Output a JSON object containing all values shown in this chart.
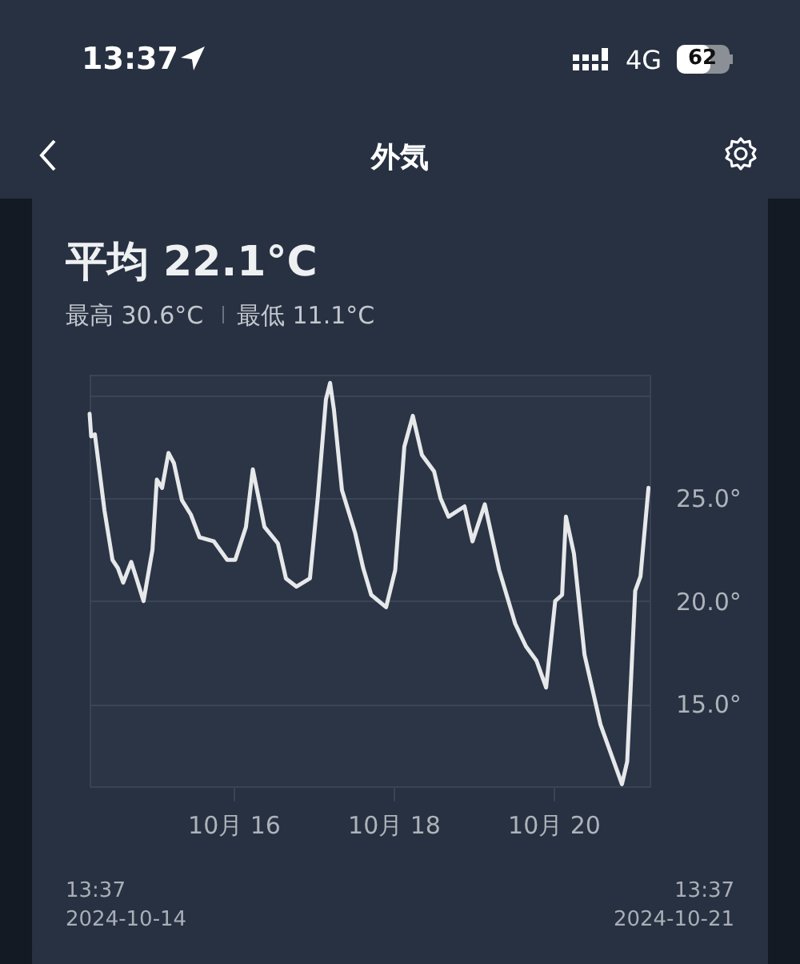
{
  "chart_data": {
    "type": "line",
    "title": "外気",
    "subtitle": "平均 22.1°C",
    "annotations": [
      "最高 30.6°C",
      "最低 11.1°C",
      "13:37",
      "2024-10-14",
      "13:37",
      "2024-10-21",
      "13:37",
      "4G",
      "62"
    ],
    "x": [
      "2024-10-14T13:37",
      "2024-10-14T14:06",
      "2024-10-14T15:12",
      "2024-10-14T18:05",
      "2024-10-14T20:29",
      "2024-10-14T22:07",
      "2024-10-14T23:42",
      "2024-10-15T02:06",
      "2024-10-15T03:41",
      "2024-10-15T05:48",
      "2024-10-15T08:29",
      "2024-10-15T09:47",
      "2024-10-15T11:22",
      "2024-10-15T13:17",
      "2024-10-15T14:55",
      "2024-10-15T17:19",
      "2024-10-15T20:00",
      "2024-10-15T22:36",
      "2024-10-16T02:55",
      "2024-10-16T06:54",
      "2024-10-16T09:18",
      "2024-10-16T12:31",
      "2024-10-16T14:35",
      "2024-10-16T18:05",
      "2024-10-16T22:07",
      "2024-10-17T00:31",
      "2024-10-17T03:41",
      "2024-10-17T07:43",
      "2024-10-17T10:07",
      "2024-10-17T12:31",
      "2024-10-17T13:46",
      "2024-10-17T14:55",
      "2024-10-17T17:19",
      "2024-10-17T21:18",
      "2024-10-17T23:42",
      "2024-10-18T02:06",
      "2024-10-18T06:34",
      "2024-10-18T09:18",
      "2024-10-18T12:02",
      "2024-10-18T14:35",
      "2024-10-18T17:19",
      "2024-10-18T20:58",
      "2024-10-18T22:53",
      "2024-10-19T01:17",
      "2024-10-19T06:05",
      "2024-10-19T08:29",
      "2024-10-19T12:11",
      "2024-10-19T16:30",
      "2024-10-19T21:18",
      "2024-10-20T00:31",
      "2024-10-20T03:41",
      "2024-10-20T06:34",
      "2024-10-20T09:18",
      "2024-10-20T11:22",
      "2024-10-20T12:31",
      "2024-10-20T14:55",
      "2024-10-20T18:05",
      "2024-10-20T22:53",
      "2024-10-21T05:19",
      "2024-10-21T06:54",
      "2024-10-21T09:18",
      "2024-10-21T10:53",
      "2024-10-21T13:17"
    ],
    "series": [
      {
        "color": "#e6e8ea",
        "values": [
          29.1,
          28.0,
          28.1,
          24.4,
          22.0,
          21.6,
          20.9,
          21.9,
          21.1,
          20.0,
          22.5,
          25.9,
          25.5,
          27.2,
          26.7,
          24.9,
          24.2,
          23.1,
          22.9,
          22.0,
          22.0,
          23.6,
          26.4,
          23.6,
          22.8,
          21.1,
          20.7,
          21.1,
          25.1,
          29.8,
          30.6,
          29.3,
          25.4,
          23.3,
          21.6,
          20.3,
          19.7,
          21.5,
          27.5,
          29.0,
          27.1,
          26.3,
          25.0,
          24.1,
          24.6,
          22.9,
          24.7,
          21.5,
          18.9,
          17.8,
          17.1,
          15.8,
          20.0,
          20.3,
          24.1,
          22.3,
          17.4,
          14.0,
          11.1,
          12.2,
          20.5,
          21.2,
          25.5
        ]
      }
    ],
    "xlim": [
      "2024-10-14T13:37",
      "2024-10-21T13:37"
    ],
    "xticks": [
      {
        "value": "2024-10-16T08:49",
        "label": "10月 16"
      },
      {
        "value": "2024-10-18T08:49",
        "label": "10月 18"
      },
      {
        "value": "2024-10-20T08:49",
        "label": "10月 20"
      }
    ],
    "ylim": [
      11,
      31
    ],
    "yticks": [
      {
        "value": 15,
        "label": "15.0°"
      },
      {
        "value": 20,
        "label": "20.0°"
      },
      {
        "value": 25,
        "label": "25.0°"
      },
      {
        "value": 30,
        "label": null
      }
    ],
    "grid": "y",
    "marker": "none",
    "line_style": "solid"
  }
}
